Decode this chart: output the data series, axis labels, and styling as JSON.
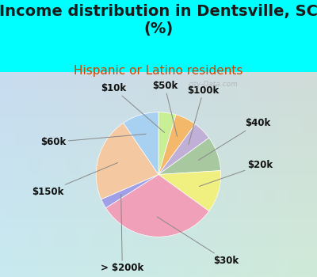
{
  "title": "Income distribution in Dentsville, SC\n(%)",
  "subtitle": "Hispanic or Latino residents",
  "background_color": "#00FFFF",
  "chart_bg_color_tl": "#c8ead8",
  "chart_bg_color_br": "#d0e8f4",
  "watermark": "city-Data.com",
  "slices_ordered": [
    {
      "label": "$10k",
      "value": 4.5,
      "color": "#c8ee96"
    },
    {
      "label": "$50k",
      "value": 5.5,
      "color": "#f4b86a"
    },
    {
      "label": "$100k",
      "value": 5.0,
      "color": "#c0b0d8"
    },
    {
      "label": "$40k",
      "value": 9.0,
      "color": "#a8c8a0"
    },
    {
      "label": "$20k",
      "value": 11.0,
      "color": "#f0f080"
    },
    {
      "label": "$30k",
      "value": 31.0,
      "color": "#f0a0b8"
    },
    {
      "label": "> $200k",
      "value": 2.5,
      "color": "#a0a0e8"
    },
    {
      "label": "$150k",
      "value": 22.0,
      "color": "#f4c8a0"
    },
    {
      "label": "$60k",
      "value": 9.5,
      "color": "#a8d0f0"
    }
  ],
  "start_angle": 90,
  "title_fontsize": 14,
  "subtitle_fontsize": 11,
  "label_fontsize": 8.5
}
